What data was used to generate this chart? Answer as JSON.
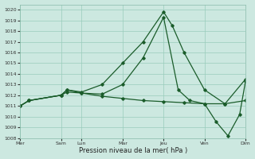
{
  "title": "Pression niveau de la mer( hPa )",
  "bg_color": "#cce8e0",
  "grid_color": "#99ccbb",
  "line_color": "#1a5c2a",
  "ylim": [
    1008,
    1020.5
  ],
  "yticks": [
    1008,
    1009,
    1010,
    1011,
    1012,
    1013,
    1014,
    1015,
    1016,
    1017,
    1018,
    1019,
    1020
  ],
  "x_labels": [
    "Mer",
    "Sam",
    "Lun",
    "Mar",
    "Jeu",
    "Ven",
    "Dim"
  ],
  "x_tick_pos": [
    0,
    14,
    21,
    35,
    49,
    63,
    77
  ],
  "line1_x": [
    0,
    3,
    14,
    16,
    21,
    28,
    35,
    42,
    49,
    52,
    56,
    63,
    70,
    77
  ],
  "line1_y": [
    1011.0,
    1011.5,
    1012.0,
    1012.5,
    1012.3,
    1013.0,
    1015.0,
    1017.0,
    1019.8,
    1018.5,
    1016.0,
    1012.5,
    1011.2,
    1013.5
  ],
  "line2_x": [
    0,
    3,
    14,
    16,
    21,
    28,
    35,
    42,
    49,
    56,
    63,
    70,
    77
  ],
  "line2_y": [
    1011.0,
    1011.5,
    1012.0,
    1012.5,
    1012.2,
    1011.9,
    1011.7,
    1011.5,
    1011.4,
    1011.3,
    1011.2,
    1011.2,
    1011.5
  ],
  "line3_x": [
    0,
    3,
    14,
    16,
    21,
    28,
    35,
    42,
    49,
    54,
    58,
    63,
    67,
    71,
    75,
    77
  ],
  "line3_y": [
    1011.0,
    1011.5,
    1012.0,
    1012.3,
    1012.2,
    1012.1,
    1013.0,
    1015.5,
    1019.3,
    1012.5,
    1011.5,
    1011.2,
    1009.5,
    1008.2,
    1010.2,
    1013.3
  ],
  "x_total": 77
}
